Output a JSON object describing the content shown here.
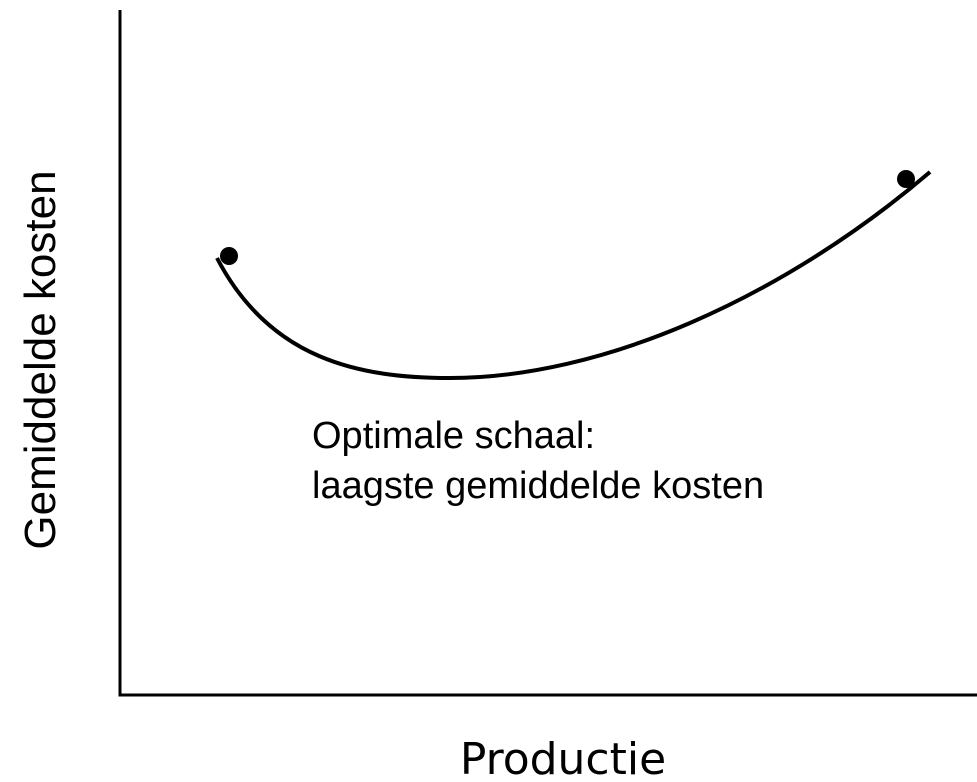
{
  "axes": {
    "y_label": "Gemiddelde kosten",
    "x_label": "Productie"
  },
  "annotation": {
    "lines": [
      "Optimale schaal:",
      "laagste gemiddelde kosten"
    ]
  }
}
